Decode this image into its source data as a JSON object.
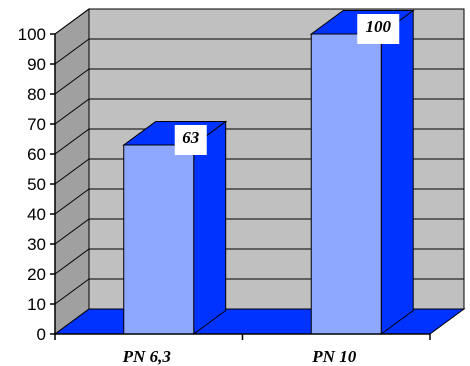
{
  "chart_data": {
    "type": "bar",
    "categories": [
      "PN 6,3",
      "PN 10"
    ],
    "values": [
      63,
      100
    ],
    "data_labels": [
      "63",
      "100"
    ],
    "ylim": [
      0,
      100
    ],
    "y_ticks": [
      "0",
      "10",
      "20",
      "30",
      "40",
      "50",
      "60",
      "70",
      "80",
      "90",
      "100"
    ],
    "grid": true,
    "three_d": true,
    "colors": {
      "bar_front": "#8ea8ff",
      "bar_side": "#0033ff",
      "floor": "#0033ff",
      "back_wall": "#c0c0c0",
      "left_wall": "#a0a0a0"
    }
  }
}
